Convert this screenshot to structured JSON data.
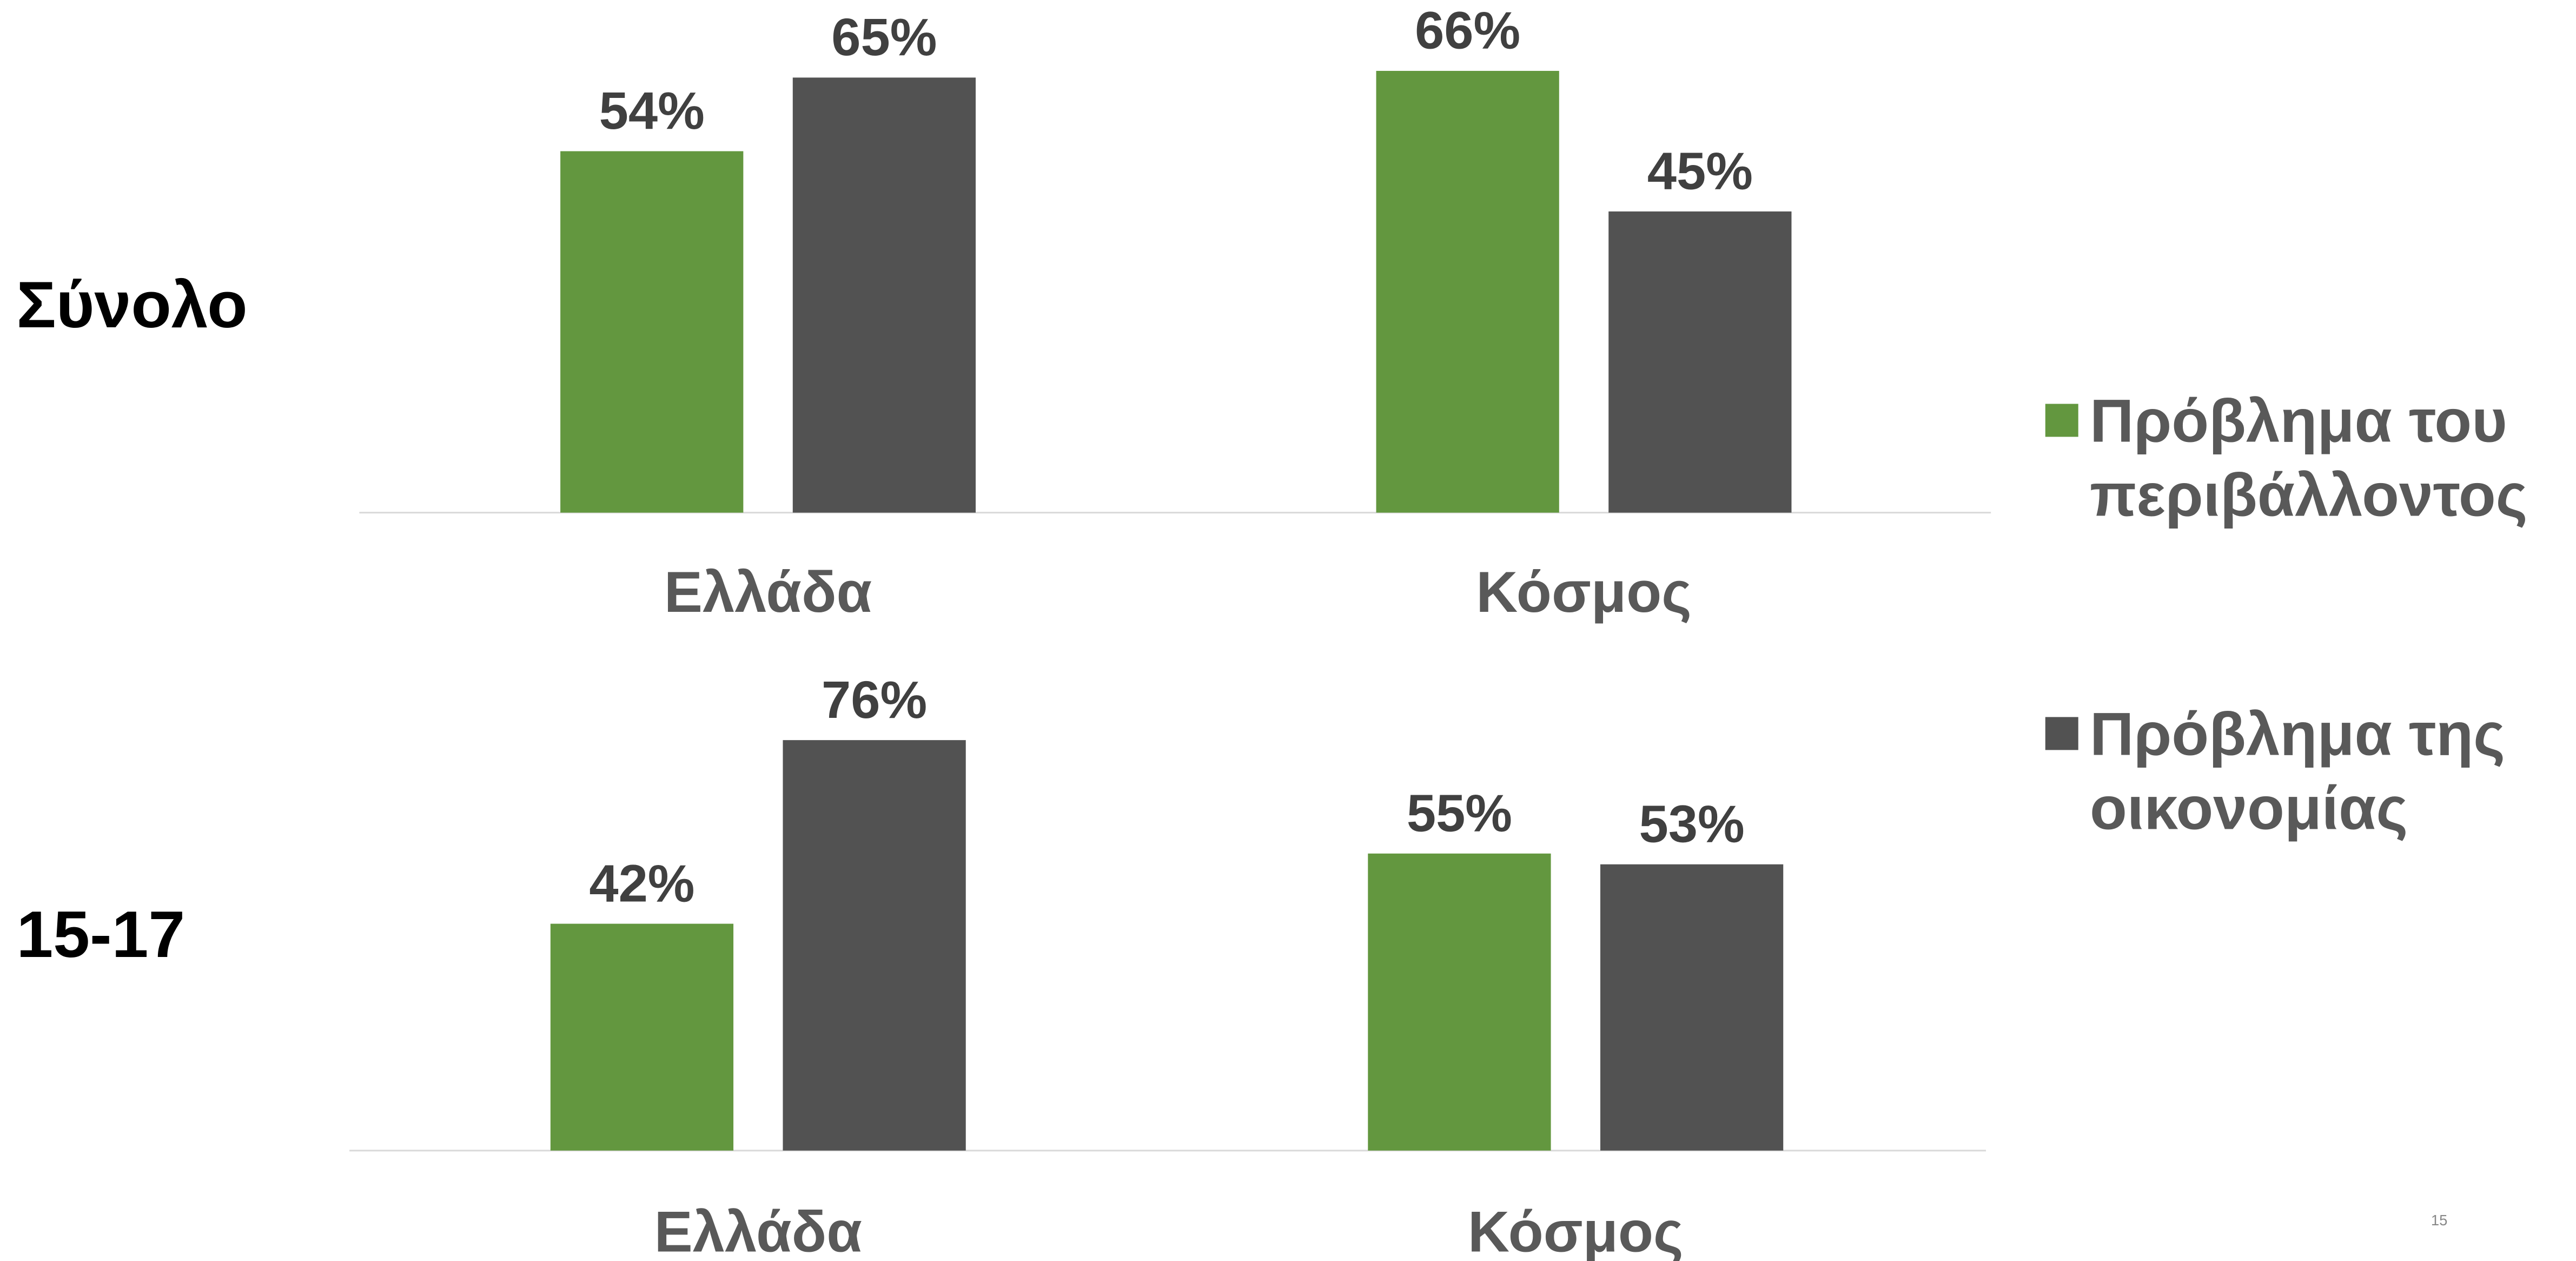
{
  "chart_data": [
    {
      "type": "bar",
      "title": "Σύνολο",
      "categories": [
        "Ελλάδα",
        "Κόσμος"
      ],
      "series": [
        {
          "name": "Πρόβλημα του περιβάλλοντος",
          "color": "#63973f",
          "values": [
            54,
            66
          ],
          "value_labels": [
            "54%",
            "66%"
          ]
        },
        {
          "name": "Πρόβλημα της οικονομίας",
          "color": "#525252",
          "values": [
            65,
            45
          ],
          "value_labels": [
            "65%",
            "45%"
          ]
        }
      ]
    },
    {
      "type": "bar",
      "title": "15-17",
      "categories": [
        "Ελλάδα",
        "Κόσμος"
      ],
      "series": [
        {
          "color": "#63973f",
          "values": [
            42,
            55
          ],
          "value_labels": [
            "42%",
            "55%"
          ]
        },
        {
          "color": "#525252",
          "values": [
            76,
            53
          ],
          "value_labels": [
            "76%",
            "53%"
          ]
        }
      ]
    }
  ],
  "page_number": "15"
}
